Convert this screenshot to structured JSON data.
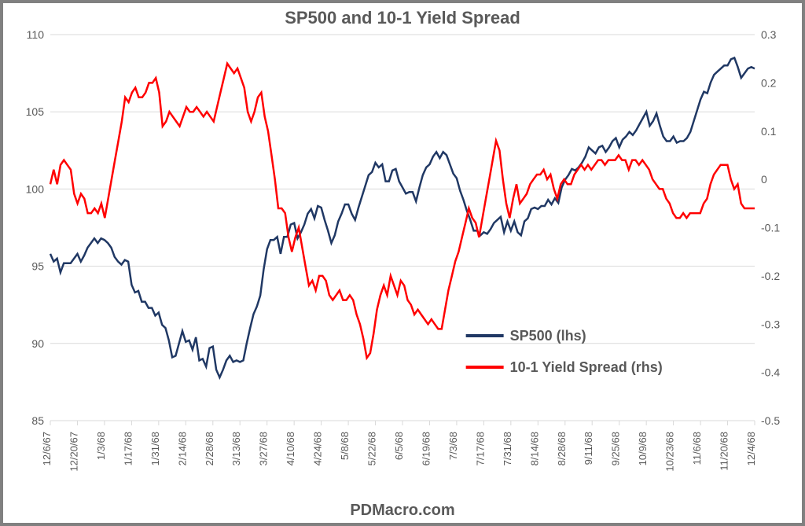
{
  "chart": {
    "type": "line",
    "title": "SP500 and 10-1 Yield Spread",
    "footer": "PDMacro.com",
    "background_color": "#ffffff",
    "border_color": "#808080",
    "grid_color": "#d9d9d9",
    "text_color": "#595959",
    "title_fontsize": 22,
    "footer_fontsize": 20,
    "axis_fontsize": 14,
    "legend_fontsize": 18,
    "x_labels": [
      "12/6/67",
      "12/20/67",
      "1/3/68",
      "1/17/68",
      "1/31/68",
      "2/14/68",
      "2/28/68",
      "3/13/68",
      "3/27/68",
      "4/10/68",
      "4/24/68",
      "5/8/68",
      "5/22/68",
      "6/5/68",
      "6/19/68",
      "7/3/68",
      "7/17/68",
      "7/31/68",
      "8/14/68",
      "8/28/68",
      "9/11/68",
      "9/25/68",
      "10/9/68",
      "10/23/68",
      "11/6/68",
      "11/20/68",
      "12/4/68"
    ],
    "y_left": {
      "min": 85,
      "max": 110,
      "step": 5
    },
    "y_right": {
      "min": -0.5,
      "max": 0.3,
      "step": 0.1
    },
    "series": [
      {
        "name": "SP500 (lhs)",
        "axis": "left",
        "color": "#203864",
        "line_width": 2.5,
        "data": [
          95.8,
          95.3,
          95.5,
          94.6,
          95.2,
          95.2,
          95.2,
          95.5,
          95.8,
          95.3,
          95.7,
          96.2,
          96.5,
          96.8,
          96.5,
          96.8,
          96.7,
          96.5,
          96.2,
          95.6,
          95.3,
          95.1,
          95.4,
          95.3,
          93.8,
          93.3,
          93.4,
          92.7,
          92.7,
          92.3,
          92.3,
          91.8,
          92.0,
          91.2,
          91.0,
          90.2,
          89.1,
          89.2,
          90.0,
          90.8,
          90.1,
          90.2,
          89.6,
          90.4,
          88.9,
          89.0,
          88.5,
          89.7,
          89.8,
          88.3,
          87.8,
          88.3,
          88.9,
          89.2,
          88.8,
          88.9,
          88.8,
          88.9,
          90.0,
          91.0,
          91.9,
          92.4,
          93.1,
          94.8,
          96.1,
          96.7,
          96.7,
          96.9,
          95.8,
          96.9,
          96.9,
          97.7,
          97.8,
          96.8,
          97.2,
          97.7,
          98.4,
          98.7,
          98.1,
          98.9,
          98.8,
          98.0,
          97.3,
          96.5,
          97.0,
          97.9,
          98.4,
          99.0,
          99.0,
          98.4,
          98.0,
          98.8,
          99.5,
          100.2,
          100.9,
          101.1,
          101.7,
          101.4,
          101.6,
          100.5,
          100.5,
          101.2,
          101.3,
          100.5,
          100.1,
          99.7,
          99.8,
          99.8,
          99.2,
          100.1,
          100.9,
          101.4,
          101.6,
          102.1,
          102.4,
          102.0,
          102.4,
          102.2,
          101.6,
          101.0,
          100.7,
          99.9,
          99.3,
          98.6,
          98.0,
          97.3,
          97.3,
          97.0,
          97.2,
          97.1,
          97.4,
          97.8,
          98.0,
          98.2,
          97.2,
          97.9,
          97.3,
          97.9,
          97.2,
          97.0,
          97.9,
          98.1,
          98.7,
          98.8,
          98.7,
          98.9,
          98.9,
          99.3,
          99.0,
          99.4,
          99.1,
          100.1,
          100.6,
          100.9,
          101.3,
          101.2,
          101.4,
          101.7,
          102.1,
          102.7,
          102.5,
          102.3,
          102.7,
          102.8,
          102.4,
          102.7,
          103.1,
          103.3,
          102.7,
          103.2,
          103.4,
          103.7,
          103.5,
          103.8,
          104.2,
          104.6,
          105.0,
          104.1,
          104.4,
          104.9,
          104.1,
          103.4,
          103.1,
          103.1,
          103.4,
          103.0,
          103.1,
          103.1,
          103.3,
          103.7,
          104.4,
          105.1,
          105.8,
          106.3,
          106.2,
          106.9,
          107.4,
          107.6,
          107.8,
          108.0,
          108.0,
          108.4,
          108.5,
          107.9,
          107.2,
          107.5,
          107.8,
          107.9,
          107.8
        ]
      },
      {
        "name": "10-1 Yield Spread (rhs)",
        "axis": "right",
        "color": "#ff0000",
        "line_width": 2.5,
        "data": [
          -0.01,
          0.02,
          -0.01,
          0.03,
          0.04,
          0.03,
          0.02,
          -0.03,
          -0.05,
          -0.03,
          -0.04,
          -0.07,
          -0.07,
          -0.06,
          -0.07,
          -0.05,
          -0.08,
          -0.04,
          0.0,
          0.04,
          0.08,
          0.12,
          0.17,
          0.16,
          0.18,
          0.19,
          0.17,
          0.17,
          0.18,
          0.2,
          0.2,
          0.21,
          0.18,
          0.11,
          0.12,
          0.14,
          0.13,
          0.12,
          0.11,
          0.13,
          0.15,
          0.14,
          0.14,
          0.15,
          0.14,
          0.13,
          0.14,
          0.13,
          0.12,
          0.15,
          0.18,
          0.21,
          0.24,
          0.23,
          0.22,
          0.23,
          0.21,
          0.19,
          0.14,
          0.12,
          0.14,
          0.17,
          0.18,
          0.13,
          0.1,
          0.05,
          0.0,
          -0.06,
          -0.06,
          -0.07,
          -0.12,
          -0.15,
          -0.12,
          -0.1,
          -0.14,
          -0.18,
          -0.22,
          -0.21,
          -0.23,
          -0.2,
          -0.2,
          -0.21,
          -0.24,
          -0.25,
          -0.24,
          -0.23,
          -0.25,
          -0.25,
          -0.24,
          -0.25,
          -0.28,
          -0.3,
          -0.33,
          -0.37,
          -0.36,
          -0.32,
          -0.27,
          -0.24,
          -0.22,
          -0.24,
          -0.2,
          -0.22,
          -0.24,
          -0.21,
          -0.22,
          -0.25,
          -0.26,
          -0.28,
          -0.27,
          -0.28,
          -0.29,
          -0.3,
          -0.29,
          -0.3,
          -0.31,
          -0.31,
          -0.27,
          -0.23,
          -0.2,
          -0.17,
          -0.15,
          -0.12,
          -0.09,
          -0.06,
          -0.08,
          -0.09,
          -0.12,
          -0.08,
          -0.04,
          0.0,
          0.04,
          0.08,
          0.06,
          0.0,
          -0.05,
          -0.08,
          -0.04,
          -0.01,
          -0.05,
          -0.04,
          -0.03,
          -0.01,
          0.0,
          0.01,
          0.01,
          0.02,
          0.0,
          0.01,
          -0.02,
          -0.04,
          -0.01,
          0.0,
          -0.01,
          -0.01,
          0.01,
          0.02,
          0.03,
          0.02,
          0.03,
          0.02,
          0.03,
          0.04,
          0.04,
          0.03,
          0.04,
          0.04,
          0.04,
          0.05,
          0.04,
          0.04,
          0.02,
          0.04,
          0.04,
          0.03,
          0.04,
          0.03,
          0.02,
          0.0,
          -0.01,
          -0.02,
          -0.02,
          -0.04,
          -0.05,
          -0.07,
          -0.08,
          -0.08,
          -0.07,
          -0.08,
          -0.07,
          -0.07,
          -0.07,
          -0.07,
          -0.05,
          -0.04,
          -0.01,
          0.01,
          0.02,
          0.03,
          0.03,
          0.03,
          0.0,
          -0.02,
          -0.01,
          -0.05,
          -0.06,
          -0.06,
          -0.06,
          -0.06
        ]
      }
    ],
    "legend": {
      "position": "bottom-right-inside",
      "entries": [
        {
          "label": "SP500 (lhs)",
          "color": "#203864"
        },
        {
          "label": "10-1 Yield Spread (rhs)",
          "color": "#ff0000"
        }
      ]
    }
  }
}
